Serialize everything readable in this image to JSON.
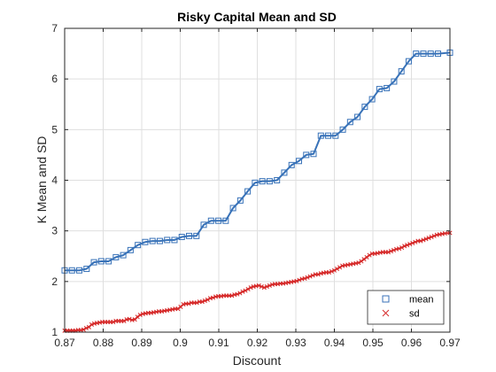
{
  "chart_data": {
    "type": "line",
    "title": "Risky Capital Mean and SD",
    "xlabel": "Discount",
    "ylabel": "K Mean and SD",
    "xlim": [
      0.87,
      0.97
    ],
    "ylim": [
      1,
      7
    ],
    "xticks": [
      0.87,
      0.88,
      0.89,
      0.9,
      0.91,
      0.92,
      0.93,
      0.94,
      0.95,
      0.96,
      0.97
    ],
    "xtick_labels": [
      "0.87",
      "0.88",
      "0.89",
      "0.9",
      "0.91",
      "0.92",
      "0.93",
      "0.94",
      "0.95",
      "0.96",
      "0.97"
    ],
    "yticks": [
      1,
      2,
      3,
      4,
      5,
      6,
      7
    ],
    "ytick_labels": [
      "1",
      "2",
      "3",
      "4",
      "5",
      "6",
      "7"
    ],
    "grid": true,
    "legend_position": "bottom-right",
    "series": [
      {
        "name": "mean",
        "color": "#3872b8",
        "marker": "square",
        "x": [
          0.87,
          0.8719,
          0.8738,
          0.8757,
          0.8776,
          0.8795,
          0.8814,
          0.8833,
          0.8852,
          0.8871,
          0.889,
          0.8909,
          0.8928,
          0.8947,
          0.8966,
          0.8985,
          0.9004,
          0.9023,
          0.9042,
          0.9061,
          0.908,
          0.9099,
          0.9118,
          0.9137,
          0.9156,
          0.9175,
          0.9194,
          0.9213,
          0.9232,
          0.9251,
          0.927,
          0.9289,
          0.9308,
          0.9327,
          0.9346,
          0.9365,
          0.9384,
          0.9403,
          0.9422,
          0.9441,
          0.946,
          0.9479,
          0.9498,
          0.9517,
          0.9536,
          0.9555,
          0.9574,
          0.9593,
          0.9612,
          0.9631,
          0.965,
          0.9669,
          0.97
        ],
        "y": [
          2.22,
          2.22,
          2.22,
          2.25,
          2.38,
          2.4,
          2.4,
          2.48,
          2.52,
          2.62,
          2.72,
          2.78,
          2.8,
          2.8,
          2.82,
          2.82,
          2.88,
          2.9,
          2.9,
          3.12,
          3.2,
          3.2,
          3.2,
          3.45,
          3.6,
          3.78,
          3.95,
          3.98,
          3.98,
          4.0,
          4.15,
          4.3,
          4.38,
          4.5,
          4.52,
          4.88,
          4.88,
          4.88,
          5.0,
          5.15,
          5.25,
          5.45,
          5.6,
          5.8,
          5.82,
          5.95,
          6.15,
          6.35,
          6.5,
          6.5,
          6.5,
          6.5,
          6.52
        ]
      },
      {
        "name": "sd",
        "color": "#d62b2b",
        "marker": "x",
        "x": [
          0.87,
          0.8707,
          0.8714,
          0.8721,
          0.8728,
          0.8735,
          0.8742,
          0.8749,
          0.8756,
          0.8763,
          0.877,
          0.8777,
          0.8784,
          0.8791,
          0.8798,
          0.8805,
          0.8812,
          0.8819,
          0.8826,
          0.8833,
          0.884,
          0.8847,
          0.8854,
          0.8861,
          0.8868,
          0.8875,
          0.8882,
          0.8889,
          0.8896,
          0.8903,
          0.891,
          0.8917,
          0.8924,
          0.8931,
          0.8938,
          0.8945,
          0.8952,
          0.8959,
          0.8966,
          0.8973,
          0.898,
          0.8987,
          0.8994,
          0.9001,
          0.9008,
          0.9015,
          0.9022,
          0.9029,
          0.9036,
          0.9043,
          0.905,
          0.9057,
          0.9064,
          0.9071,
          0.9078,
          0.9085,
          0.9092,
          0.9099,
          0.9106,
          0.9113,
          0.912,
          0.9127,
          0.9134,
          0.9141,
          0.9148,
          0.9155,
          0.9162,
          0.9169,
          0.9176,
          0.9183,
          0.919,
          0.9197,
          0.9204,
          0.9211,
          0.9218,
          0.9225,
          0.9232,
          0.9239,
          0.9246,
          0.9253,
          0.926,
          0.9267,
          0.9274,
          0.9281,
          0.9288,
          0.9295,
          0.9302,
          0.9309,
          0.9316,
          0.9323,
          0.933,
          0.9337,
          0.9344,
          0.9351,
          0.9358,
          0.9365,
          0.9372,
          0.9379,
          0.9386,
          0.9393,
          0.94,
          0.9407,
          0.9414,
          0.9421,
          0.9428,
          0.9435,
          0.9442,
          0.9449,
          0.9456,
          0.9463,
          0.947,
          0.9477,
          0.9484,
          0.9491,
          0.9498,
          0.9505,
          0.9512,
          0.9519,
          0.9526,
          0.9533,
          0.954,
          0.9547,
          0.9554,
          0.9561,
          0.9568,
          0.9575,
          0.9582,
          0.9589,
          0.9596,
          0.9603,
          0.961,
          0.9617,
          0.9624,
          0.9631,
          0.9638,
          0.9645,
          0.9652,
          0.9659,
          0.9666,
          0.9673,
          0.968,
          0.9687,
          0.97
        ],
        "y": [
          1.03,
          1.03,
          1.03,
          1.03,
          1.03,
          1.04,
          1.04,
          1.05,
          1.08,
          1.1,
          1.15,
          1.17,
          1.18,
          1.19,
          1.2,
          1.2,
          1.2,
          1.2,
          1.2,
          1.22,
          1.22,
          1.22,
          1.22,
          1.25,
          1.26,
          1.24,
          1.25,
          1.3,
          1.34,
          1.36,
          1.37,
          1.38,
          1.38,
          1.39,
          1.4,
          1.41,
          1.41,
          1.42,
          1.43,
          1.44,
          1.45,
          1.46,
          1.46,
          1.5,
          1.55,
          1.56,
          1.56,
          1.58,
          1.58,
          1.58,
          1.6,
          1.6,
          1.62,
          1.64,
          1.67,
          1.68,
          1.7,
          1.71,
          1.71,
          1.72,
          1.72,
          1.72,
          1.72,
          1.74,
          1.75,
          1.77,
          1.8,
          1.82,
          1.85,
          1.88,
          1.9,
          1.91,
          1.92,
          1.9,
          1.88,
          1.9,
          1.92,
          1.94,
          1.95,
          1.95,
          1.96,
          1.96,
          1.97,
          1.98,
          1.99,
          2.0,
          2.01,
          2.03,
          2.05,
          2.06,
          2.08,
          2.1,
          2.12,
          2.14,
          2.14,
          2.16,
          2.17,
          2.18,
          2.18,
          2.2,
          2.22,
          2.25,
          2.28,
          2.31,
          2.32,
          2.33,
          2.34,
          2.35,
          2.36,
          2.37,
          2.4,
          2.44,
          2.48,
          2.52,
          2.55,
          2.55,
          2.56,
          2.57,
          2.58,
          2.58,
          2.58,
          2.6,
          2.62,
          2.64,
          2.65,
          2.67,
          2.7,
          2.72,
          2.74,
          2.76,
          2.78,
          2.8,
          2.8,
          2.82,
          2.84,
          2.86,
          2.88,
          2.9,
          2.92,
          2.93,
          2.94,
          2.95,
          2.96
        ]
      }
    ]
  }
}
